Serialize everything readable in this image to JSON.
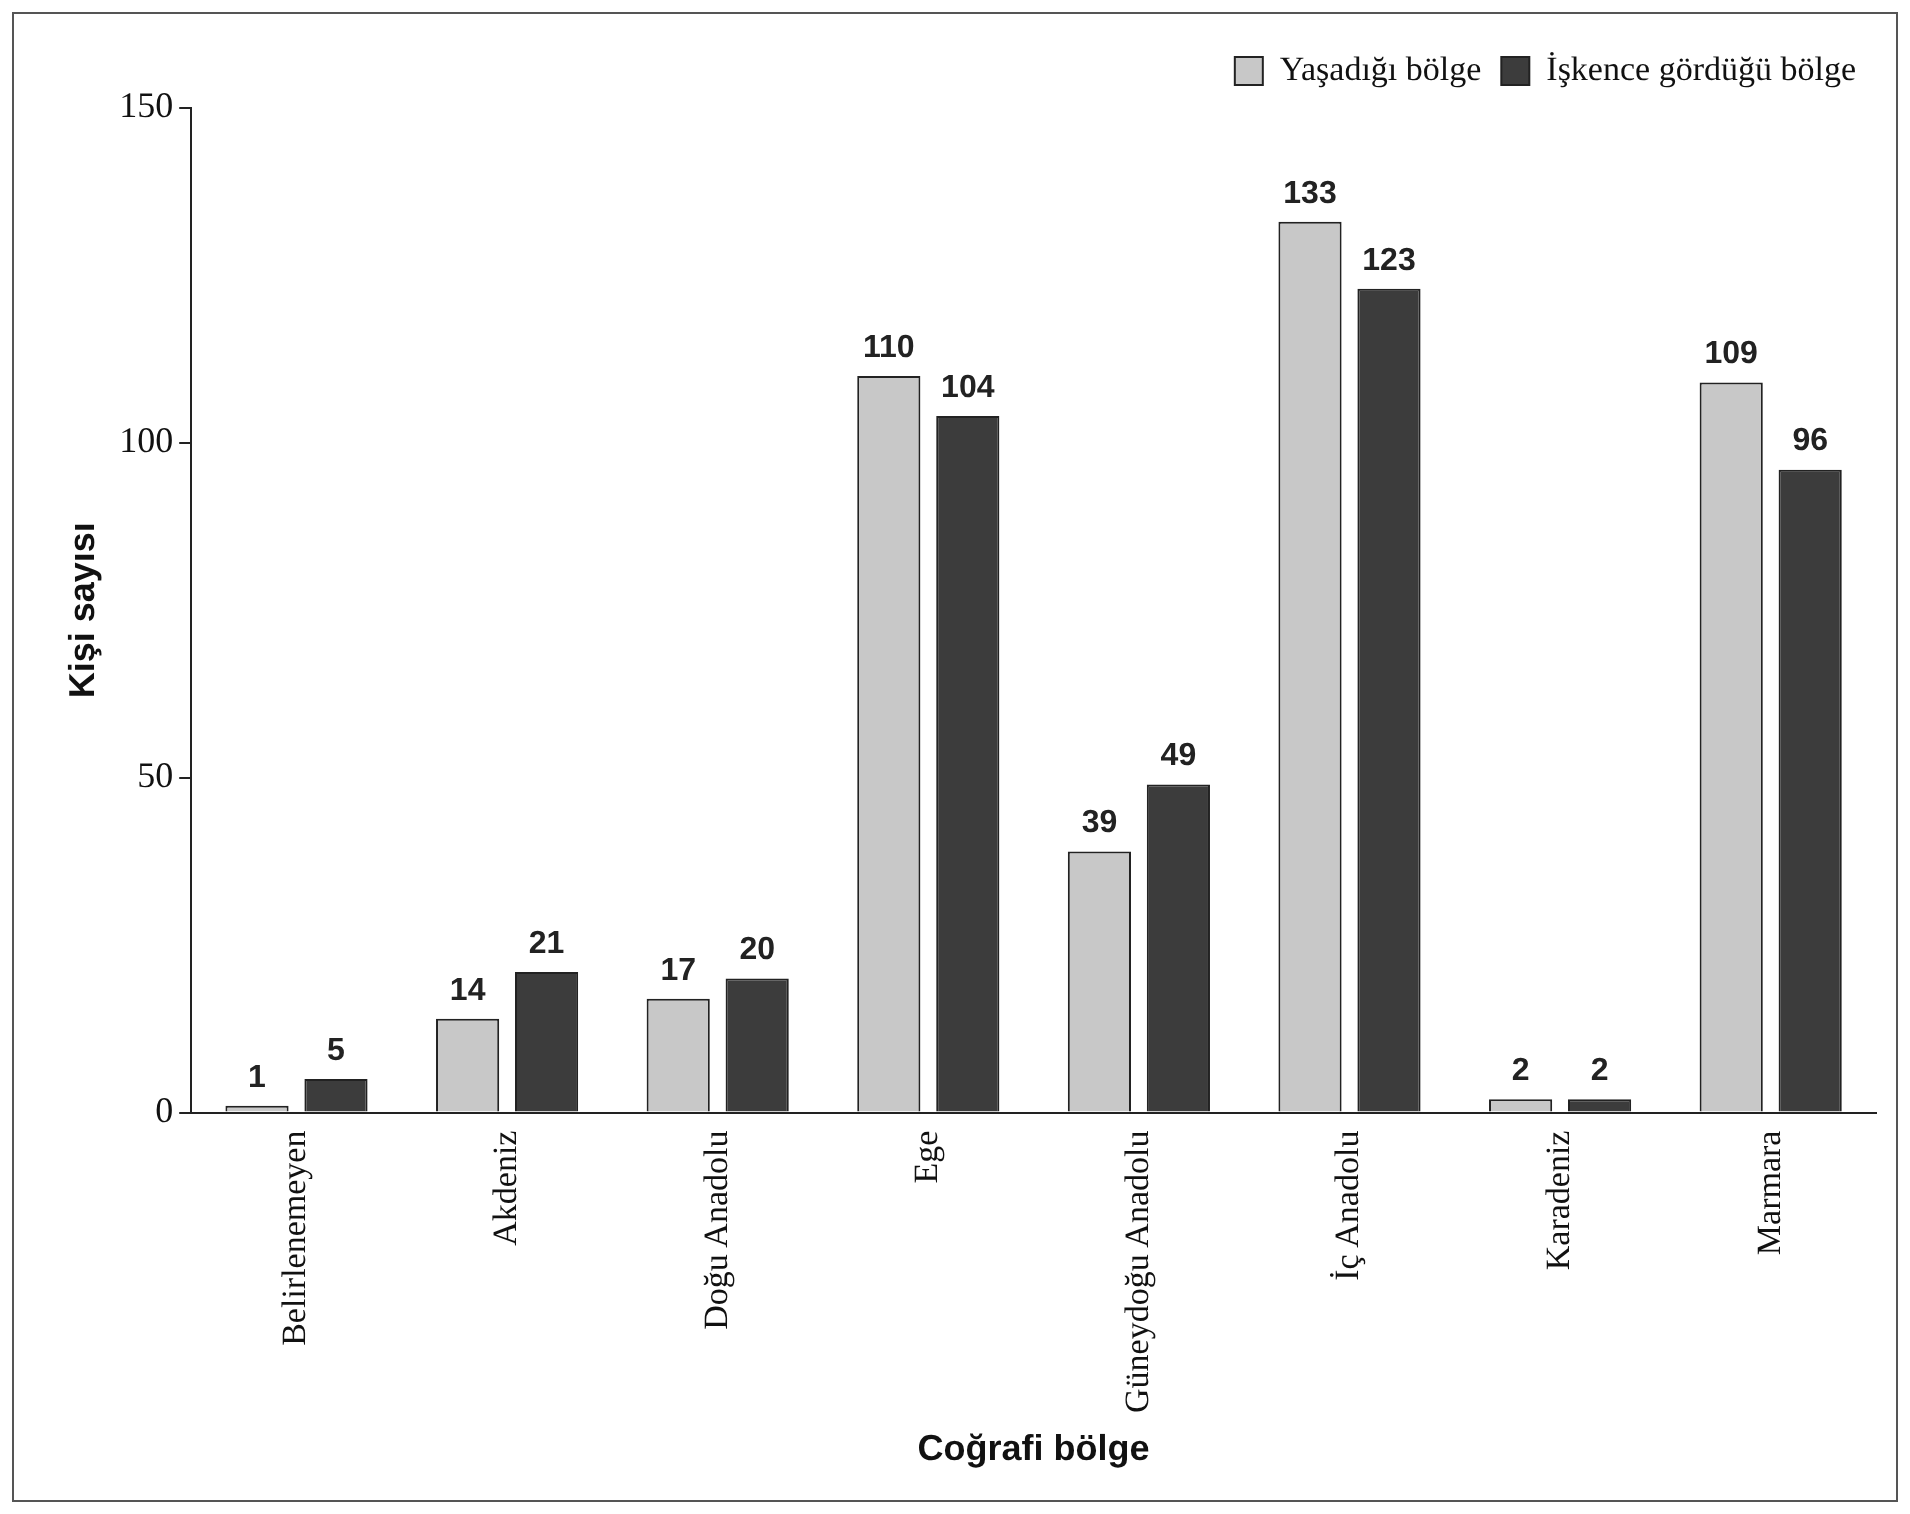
{
  "chart_data": {
    "type": "bar",
    "xlabel": "Coğrafi bölge",
    "ylabel": "Kişi sayısı",
    "categories": [
      "Belirlenemeyen",
      "Akdeniz",
      "Doğu Anadolu",
      "Ege",
      "Güneydoğu Anadolu",
      "İç Anadolu",
      "Karadeniz",
      "Marmara"
    ],
    "series": [
      {
        "name": "Yaşadığı bölge",
        "color": "#c8c8c8",
        "values": [
          1,
          14,
          17,
          110,
          39,
          133,
          2,
          109
        ]
      },
      {
        "name": "İşkence gördüğü bölge",
        "color": "#3c3c3c",
        "values": [
          5,
          21,
          20,
          104,
          49,
          123,
          2,
          96
        ]
      }
    ],
    "ylim": [
      0,
      150
    ],
    "yticks": [
      0,
      50,
      100,
      150
    ],
    "grid": false,
    "legend": "top right",
    "data_labels": true
  }
}
